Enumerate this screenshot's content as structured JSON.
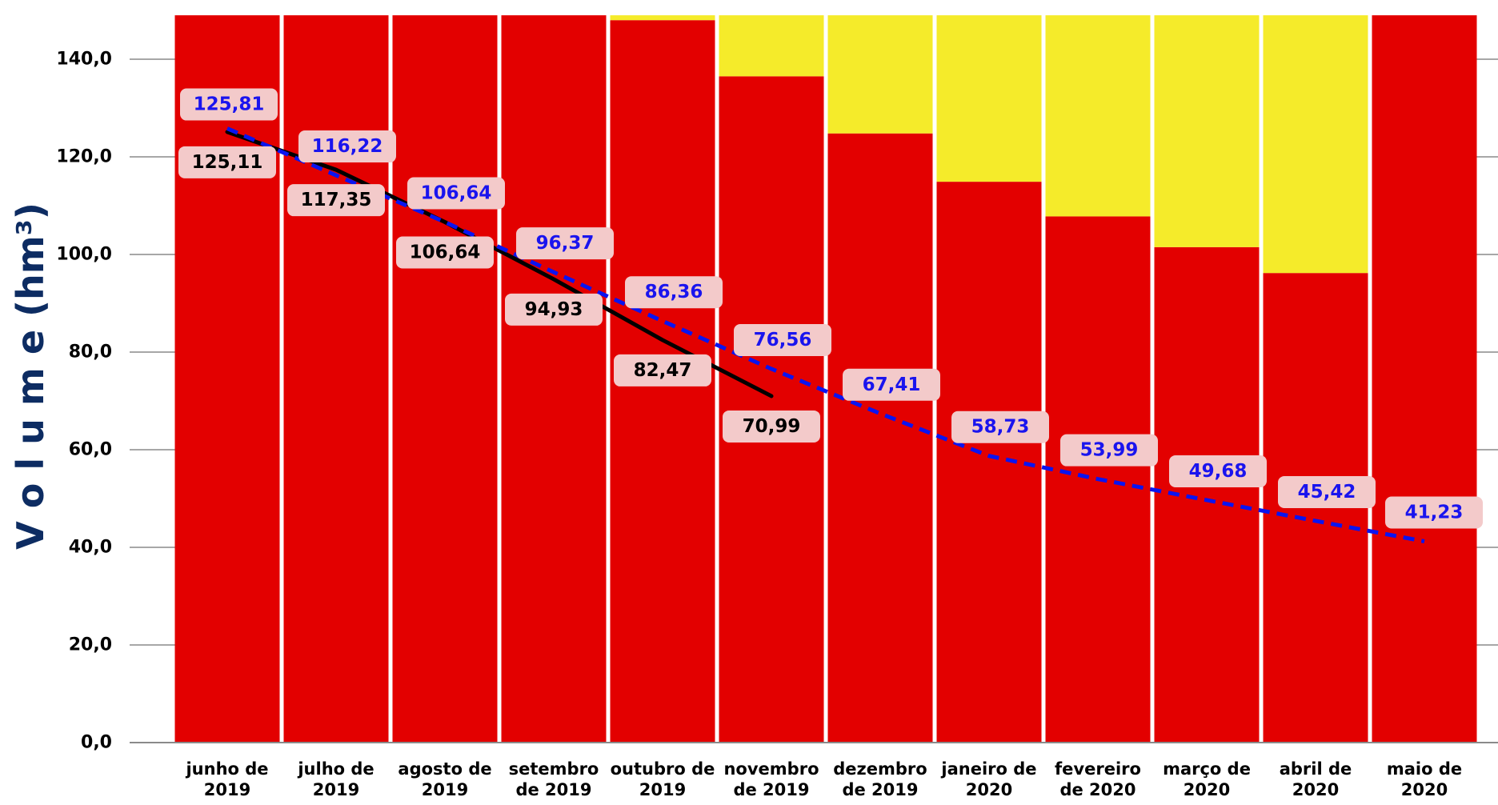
{
  "chart_data": {
    "type": "bar",
    "title": "",
    "xlabel": "",
    "ylabel": "V o l u m e (hm³)",
    "ylim": [
      0,
      149
    ],
    "yticks": [
      0,
      20,
      40,
      60,
      80,
      100,
      120,
      140
    ],
    "ytick_labels": [
      "0,0",
      "20,0",
      "40,0",
      "60,0",
      "80,0",
      "100,0",
      "120,0",
      "140,0"
    ],
    "grid": "horizontal",
    "legend": "none",
    "categories": [
      [
        "junho de",
        "2019"
      ],
      [
        "julho de",
        "2019"
      ],
      [
        "agosto de",
        "2019"
      ],
      [
        "setembro",
        "de 2019"
      ],
      [
        "outubro de",
        "2019"
      ],
      [
        "novembro",
        "de 2019"
      ],
      [
        "dezembro",
        "de 2019"
      ],
      [
        "janeiro de",
        "2020"
      ],
      [
        "fevereiro",
        "de 2020"
      ],
      [
        "março de",
        "2020"
      ],
      [
        "abril de",
        "2020"
      ],
      [
        "maio de",
        "2020"
      ]
    ],
    "stacked_series": [
      {
        "color": "#e30000",
        "values": [
          149,
          149,
          149,
          149,
          148,
          136.5,
          124.8,
          114.9,
          107.8,
          101.5,
          96.2,
          149
        ]
      },
      {
        "color": "#f5eb2a",
        "values": [
          0,
          0,
          0,
          0,
          1,
          12.5,
          24.2,
          34.1,
          41.2,
          47.5,
          52.8,
          0
        ]
      }
    ],
    "line_series": [
      {
        "color": "#000000",
        "dash": "solid",
        "label_color": "#000000",
        "values": [
          125.11,
          117.35,
          106.64,
          94.93,
          82.47,
          70.99
        ],
        "labels": [
          "125,11",
          "117,35",
          "106,64",
          "94,93",
          "82,47",
          "70,99"
        ]
      },
      {
        "color": "#0a14f0",
        "dash": "dashed",
        "label_color": "#1a14ee",
        "values": [
          125.81,
          116.22,
          106.64,
          96.37,
          86.36,
          76.56,
          67.41,
          58.73,
          53.99,
          49.68,
          45.42,
          41.23
        ],
        "labels": [
          "125,81",
          "116,22",
          "106,64",
          "96,37",
          "86,36",
          "76,56",
          "67,41",
          "58,73",
          "53,99",
          "49,68",
          "45,42",
          "41,23"
        ]
      }
    ],
    "label_box_color": "#f3caca",
    "axis_title_color": "#0d2c62"
  }
}
